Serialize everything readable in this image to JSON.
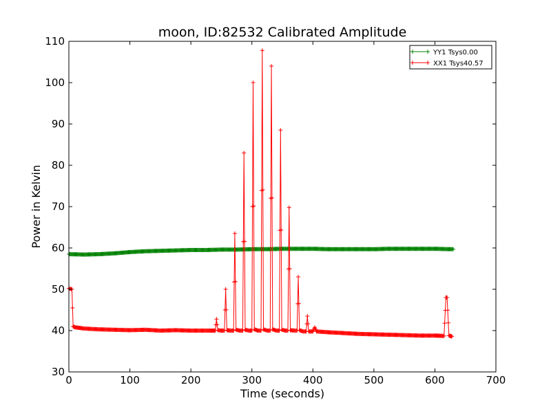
{
  "chart_data": {
    "type": "line",
    "title": "moon, ID:82532 Calibrated Amplitude",
    "xlabel": "Time (seconds)",
    "ylabel": "Power in Kelvin",
    "xlim": [
      0,
      700
    ],
    "ylim": [
      30,
      110
    ],
    "xticks": [
      0,
      100,
      200,
      300,
      400,
      500,
      600,
      700
    ],
    "yticks": [
      30,
      40,
      50,
      60,
      70,
      80,
      90,
      100,
      110
    ],
    "grid": false,
    "legend_position": "top-right",
    "colors": {
      "YY1": "#008000",
      "XX1": "#ff0000"
    },
    "series": [
      {
        "name": "YY1 Tsys0.00",
        "color": "#008000",
        "marker": "plus",
        "x": [
          0,
          25,
          50,
          75,
          100,
          125,
          150,
          175,
          200,
          225,
          250,
          275,
          300,
          325,
          350,
          375,
          400,
          425,
          450,
          475,
          500,
          525,
          550,
          575,
          600,
          625,
          630
        ],
        "y": [
          58.5,
          58.4,
          58.5,
          58.7,
          59.0,
          59.2,
          59.3,
          59.4,
          59.5,
          59.5,
          59.6,
          59.6,
          59.7,
          59.7,
          59.8,
          59.8,
          59.8,
          59.7,
          59.7,
          59.7,
          59.7,
          59.8,
          59.8,
          59.8,
          59.8,
          59.7,
          59.7
        ]
      },
      {
        "name": "XX1 Tsys40.57",
        "color": "#ff0000",
        "marker": "plus",
        "x": [
          0,
          5,
          7,
          10,
          25,
          50,
          75,
          100,
          125,
          150,
          175,
          200,
          225,
          240,
          242,
          244,
          250,
          255,
          257,
          259,
          265,
          270,
          272,
          274,
          280,
          285,
          287,
          289,
          295,
          300,
          302,
          304,
          310,
          315,
          317,
          319,
          325,
          330,
          332,
          334,
          340,
          345,
          347,
          349,
          355,
          359,
          361,
          363,
          370,
          374,
          376,
          378,
          384,
          389,
          391,
          393,
          400,
          403,
          406,
          425,
          450,
          475,
          500,
          525,
          550,
          575,
          600,
          615,
          618,
          620,
          623,
          625,
          628
        ],
        "y": [
          50.2,
          50.0,
          41.0,
          40.8,
          40.5,
          40.3,
          40.2,
          40.1,
          40.2,
          40.0,
          40.1,
          40.0,
          40.0,
          40.0,
          42.8,
          40.1,
          40.0,
          40.0,
          50.0,
          40.1,
          40.0,
          40.0,
          63.5,
          40.2,
          40.0,
          40.0,
          83.0,
          40.2,
          40.0,
          40.0,
          100.0,
          40.3,
          40.0,
          40.0,
          107.8,
          40.3,
          40.0,
          40.0,
          104.0,
          40.3,
          40.0,
          40.0,
          88.5,
          40.2,
          40.0,
          40.0,
          69.8,
          40.1,
          40.0,
          40.0,
          53.0,
          40.1,
          39.8,
          39.8,
          43.5,
          39.8,
          39.8,
          40.8,
          39.8,
          39.6,
          39.4,
          39.2,
          39.1,
          39.0,
          38.9,
          38.8,
          38.8,
          38.7,
          48.0,
          48.0,
          38.8,
          38.7,
          38.6
        ]
      }
    ]
  }
}
